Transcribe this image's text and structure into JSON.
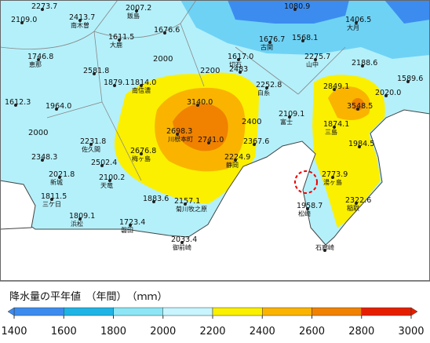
{
  "map": {
    "stations": [
      {
        "value": "2273.7"
      },
      {
        "value": "2109.0"
      },
      {
        "value": "2413.7",
        "name": "南木曽"
      },
      {
        "value": "2007.2",
        "name": "飯島"
      },
      {
        "value": "1611.5",
        "name": "大鹿"
      },
      {
        "value": "1676.6"
      },
      {
        "value": "1080.9"
      },
      {
        "value": "1406.5",
        "name": "大月"
      },
      {
        "value": "1676.7",
        "name": "古関"
      },
      {
        "value": "1617.0",
        "name": "切石"
      },
      {
        "value": "1568.1"
      },
      {
        "value": "2275.7",
        "name": "山中"
      },
      {
        "value": "1746.8",
        "name": "恵那"
      },
      {
        "value": "2581.8"
      },
      {
        "value": "1879.1"
      },
      {
        "value": "1814.0",
        "name": "南信濃"
      },
      {
        "value": "2188.6"
      },
      {
        "value": "1589.6"
      },
      {
        "value": "2483"
      },
      {
        "value": "2252.8",
        "name": "白糸"
      },
      {
        "value": "2849.1"
      },
      {
        "value": "3548.5"
      },
      {
        "value": "2020.0"
      },
      {
        "value": "1612.3"
      },
      {
        "value": "1964.0"
      },
      {
        "value": "3140.0"
      },
      {
        "value": "2109.1",
        "name": "富士"
      },
      {
        "value": "1874.1",
        "name": "三島"
      },
      {
        "value": "2698.3",
        "name": "川根本町"
      },
      {
        "value": "2741.0"
      },
      {
        "value": "2367.6"
      },
      {
        "value": "1984.5"
      },
      {
        "value": "2231.8",
        "name": "佐久間"
      },
      {
        "value": "2676.8",
        "name": "梅ヶ島"
      },
      {
        "value": "2348.3"
      },
      {
        "value": "2224.9",
        "name": "静岡"
      },
      {
        "value": "2502.4"
      },
      {
        "value": "2021.8",
        "name": "新城"
      },
      {
        "value": "2100.2",
        "name": "天竜"
      },
      {
        "value": "2773.9",
        "name": "湯ヶ島"
      },
      {
        "value": "1811.5",
        "name": "三ケ日"
      },
      {
        "value": "1883.6"
      },
      {
        "value": "2157.1",
        "name": "菊川牧之原"
      },
      {
        "value": "2322.6",
        "name": "稲取"
      },
      {
        "value": "1958.7",
        "name": "松崎"
      },
      {
        "value": "1809.1",
        "name": "浜松"
      },
      {
        "value": "1723.4",
        "name": "磐田"
      },
      {
        "value": "2033.4",
        "name": "御前崎"
      },
      {
        "name": "石廊崎"
      }
    ],
    "contour_labels": [
      "2000",
      "2200",
      "2400",
      "2000"
    ]
  },
  "legend": {
    "title": "降水量の平年値　（年間）　（ｍｍ）",
    "ticks": [
      1400,
      1600,
      1800,
      2000,
      2200,
      2400,
      2600,
      2800,
      3000
    ],
    "colors": [
      "#3c8cf0",
      "#1eb4e6",
      "#8ce6f5",
      "#c8f5ff",
      "#faf000",
      "#fab400",
      "#f08200",
      "#e61e00"
    ]
  }
}
